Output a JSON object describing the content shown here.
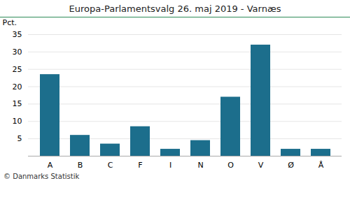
{
  "chart_data": {
    "type": "bar",
    "title": "Europa-Parlamentsvalg 26. maj 2019 - Varnæs",
    "caption": "© Danmarks Statistik",
    "y_label": "Pct.",
    "categories": [
      "A",
      "B",
      "C",
      "F",
      "I",
      "N",
      "O",
      "V",
      "Ø",
      "Å"
    ],
    "values": [
      23.5,
      6.0,
      3.5,
      8.5,
      2.0,
      4.5,
      17.0,
      32.0,
      2.0,
      2.0
    ],
    "color": "#1c6e8c",
    "ylim": [
      0,
      35
    ],
    "yticks": [
      5,
      10,
      15,
      20,
      25,
      30,
      35
    ],
    "grid": true
  }
}
